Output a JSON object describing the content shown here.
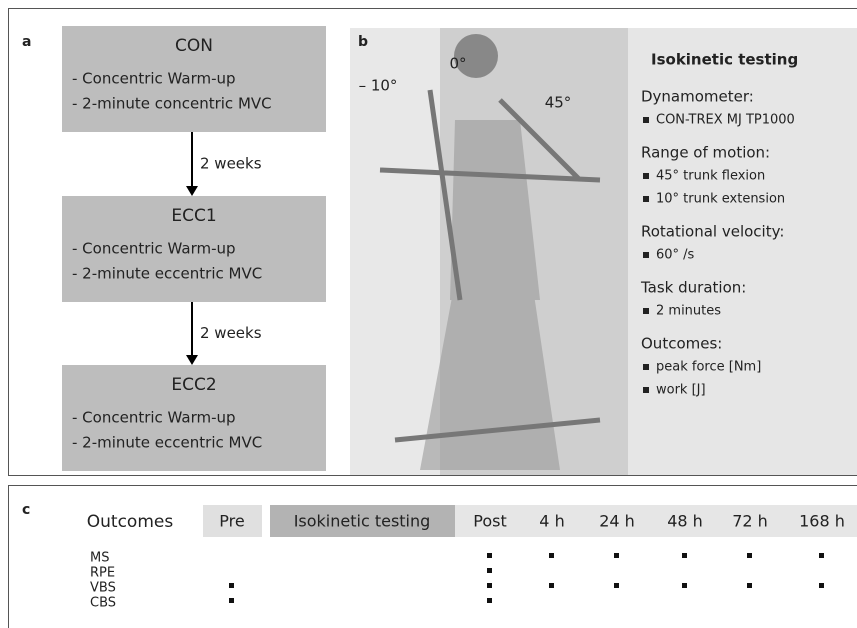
{
  "panel_a": {
    "label": "a",
    "steps": [
      {
        "title": "CON",
        "items": [
          "- Concentric Warm-up",
          "- 2-minute concentric MVC"
        ]
      },
      {
        "title": "ECC1",
        "items": [
          "- Concentric Warm-up",
          "- 2-minute eccentric MVC"
        ]
      },
      {
        "title": "ECC2",
        "items": [
          "- Concentric Warm-up",
          "- 2-minute eccentric MVC"
        ]
      }
    ],
    "intervals": [
      "2 weeks",
      "2 weeks"
    ]
  },
  "panel_b": {
    "label": "b",
    "angles": [
      "– 10°",
      "0°",
      "45°"
    ],
    "heading": "Isokinetic testing",
    "sections": [
      {
        "title": "Dynamometer:",
        "items": [
          "CON-TREX MJ TP1000"
        ]
      },
      {
        "title": "Range of motion:",
        "items": [
          "45° trunk flexion",
          "10° trunk extension"
        ]
      },
      {
        "title": "Rotational velocity:",
        "items": [
          "60° /s"
        ]
      },
      {
        "title": "Task duration:",
        "items": [
          "2 minutes"
        ]
      },
      {
        "title": "Outcomes:",
        "items": [
          "peak force [Nm]",
          "work [J]"
        ]
      }
    ]
  },
  "panel_c": {
    "label": "c",
    "header": [
      "Outcomes",
      "Pre",
      "Isokinetic testing",
      "Post",
      "4 h",
      "24 h",
      "48 h",
      "72 h",
      "168 h"
    ],
    "rows": [
      {
        "name": "MS",
        "marks": [
          false,
          false,
          true,
          true,
          true,
          true,
          true,
          true
        ]
      },
      {
        "name": "RPE",
        "marks": [
          false,
          false,
          true,
          false,
          false,
          false,
          false,
          false
        ]
      },
      {
        "name": "VBS",
        "marks": [
          true,
          false,
          true,
          true,
          true,
          true,
          true,
          true
        ]
      },
      {
        "name": "CBS",
        "marks": [
          true,
          false,
          true,
          false,
          false,
          false,
          false,
          false
        ]
      }
    ]
  }
}
